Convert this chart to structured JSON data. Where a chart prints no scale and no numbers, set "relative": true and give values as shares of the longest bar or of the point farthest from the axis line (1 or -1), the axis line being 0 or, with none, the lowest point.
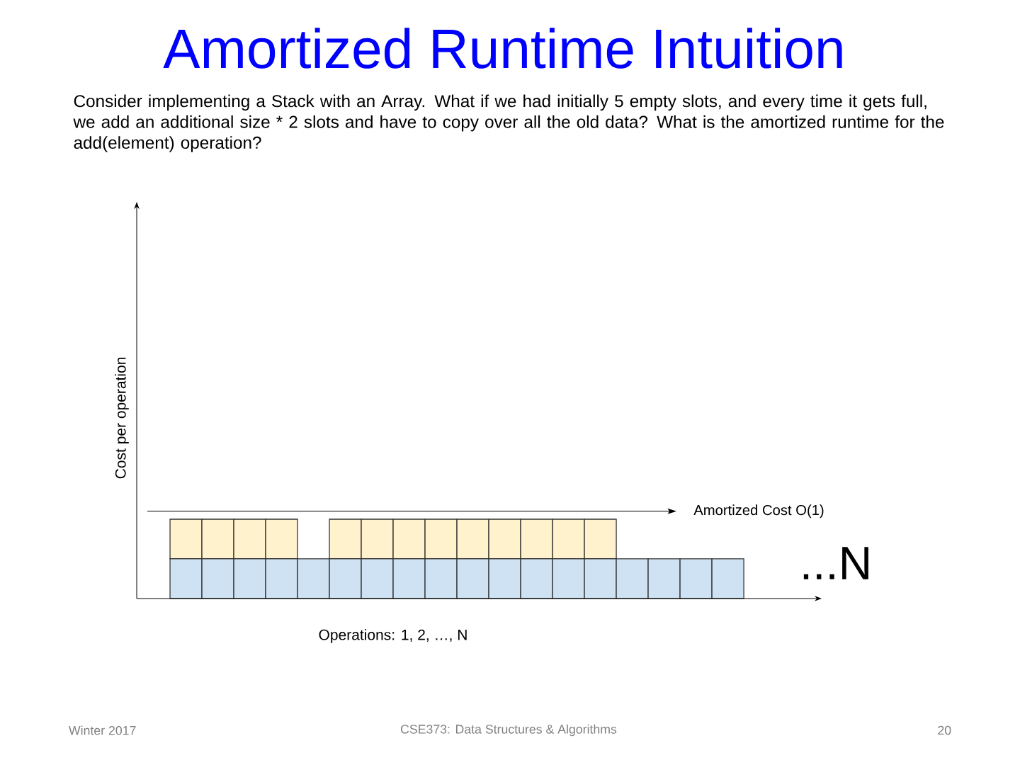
{
  "chart_data": {
    "type": "bar",
    "title": "Amortized Runtime Intuition",
    "subtitle": "Consider implementing a Stack with an Array.  What if we had initially 5 empty slots, and every time it gets full, we add an additional size * 2 slots and have to copy over all the old data?  What is the amortized runtime for the add(element) operation?",
    "xlabel": "Operations: 1, 2, …, N",
    "ylabel": "Cost per operation",
    "categories": [
      null,
      null,
      null,
      null,
      null,
      null,
      null,
      null,
      null,
      null,
      null,
      null,
      null,
      null,
      null,
      null,
      null,
      null
    ],
    "stacked": true,
    "relative": true,
    "series": [
      {
        "color": "#cfe2f3",
        "values": [
          0.5,
          0.5,
          0.5,
          0.5,
          0.5,
          0.5,
          0.5,
          0.5,
          0.5,
          0.5,
          0.5,
          0.5,
          0.5,
          0.5,
          0.5,
          0.5,
          0.5,
          0.5
        ]
      },
      {
        "color": "#fff2cc",
        "values": [
          0.5,
          0.5,
          0.5,
          0.5,
          null,
          0.5,
          0.5,
          0.5,
          0.5,
          0.5,
          0.5,
          0.5,
          0.5,
          0.5,
          null,
          null,
          null,
          null
        ]
      }
    ],
    "ref_lines": [
      {
        "axis": "y",
        "value": 1.1,
        "label": "Amortized Cost O(1)"
      }
    ],
    "annotations": [
      "...N",
      "Winter 2017",
      "CSE373: Data Structures & Algorithms",
      "20"
    ]
  }
}
